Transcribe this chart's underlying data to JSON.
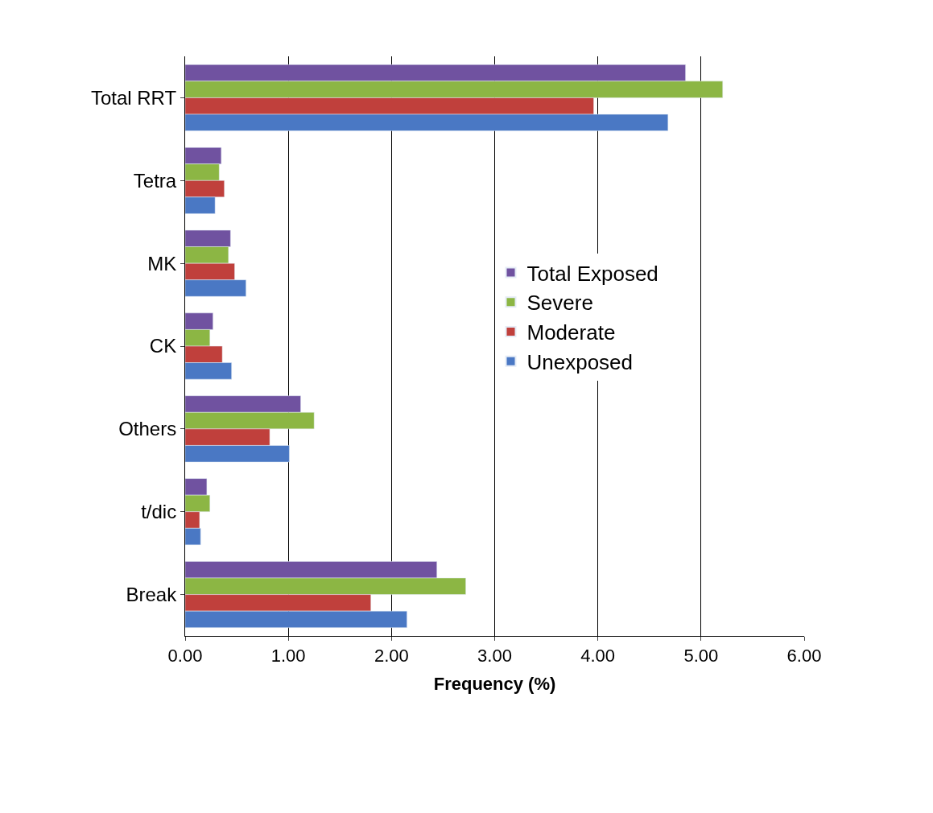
{
  "chart_data": {
    "type": "bar",
    "orientation": "horizontal",
    "xlabel": "Frequency (%)",
    "categories": [
      "Total RRT",
      "Tetra",
      "MK",
      "CK",
      "Others",
      "t/dic",
      "Break"
    ],
    "series": [
      {
        "name": "Total Exposed",
        "color": "#7052a0",
        "values": [
          4.85,
          0.35,
          0.44,
          0.27,
          1.12,
          0.21,
          2.44
        ]
      },
      {
        "name": "Severe",
        "color": "#8cb644",
        "values": [
          5.21,
          0.33,
          0.42,
          0.24,
          1.25,
          0.24,
          2.72
        ]
      },
      {
        "name": "Moderate",
        "color": "#c0403c",
        "values": [
          3.96,
          0.38,
          0.48,
          0.36,
          0.82,
          0.14,
          1.8
        ]
      },
      {
        "name": "Unexposed",
        "color": "#4a78c4",
        "values": [
          4.68,
          0.29,
          0.59,
          0.45,
          1.01,
          0.15,
          2.15
        ]
      }
    ],
    "xlim": [
      0,
      6
    ],
    "xticks": [
      {
        "value": 0,
        "label": "0.00"
      },
      {
        "value": 1,
        "label": "1.00"
      },
      {
        "value": 2,
        "label": "2.00"
      },
      {
        "value": 3,
        "label": "3.00"
      },
      {
        "value": 4,
        "label": "4.00"
      },
      {
        "value": 5,
        "label": "5.00"
      },
      {
        "value": 6,
        "label": "6.00"
      }
    ],
    "grid": "x",
    "legend": "right"
  }
}
